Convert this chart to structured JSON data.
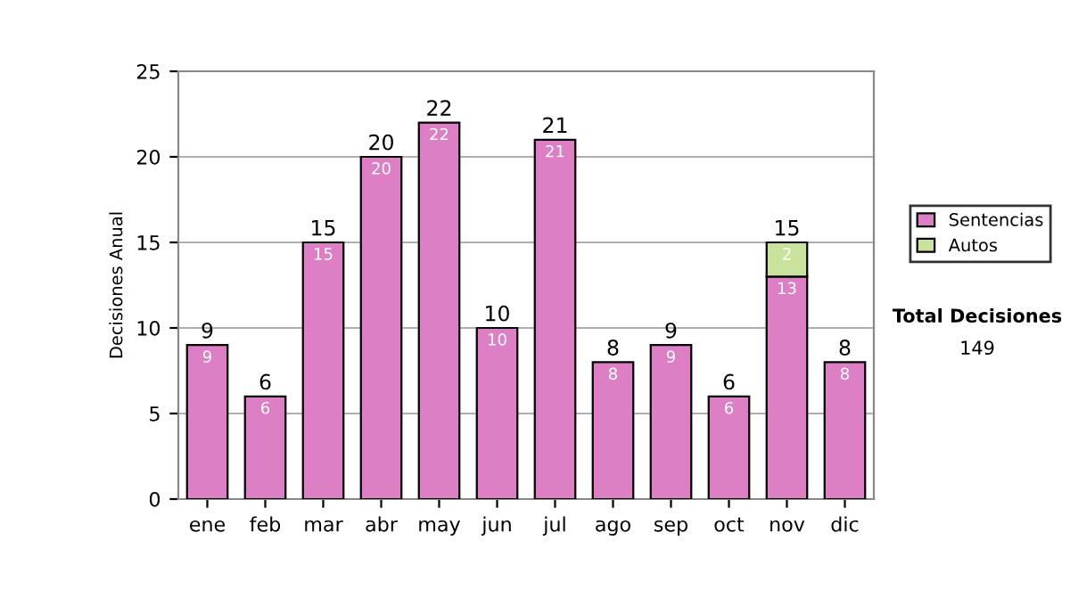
{
  "chart_data": {
    "type": "bar",
    "stacked": true,
    "ylabel": "Decisiones Anual",
    "categories": [
      "ene",
      "feb",
      "mar",
      "abr",
      "may",
      "jun",
      "jul",
      "ago",
      "sep",
      "oct",
      "nov",
      "dic"
    ],
    "series": [
      {
        "name": "Sentencias",
        "color": "#dd7fc4",
        "values": [
          9,
          6,
          15,
          20,
          22,
          10,
          21,
          8,
          9,
          6,
          13,
          8
        ]
      },
      {
        "name": "Autos",
        "color": "#c9e39d",
        "values": [
          null,
          null,
          null,
          null,
          null,
          null,
          null,
          null,
          null,
          null,
          2,
          null
        ],
        "value_labels": [
          null,
          null,
          null,
          null,
          null,
          null,
          null,
          null,
          null,
          null,
          "2",
          null
        ]
      }
    ],
    "data_labels": true,
    "totals": [
      "9",
      "6",
      "15",
      "20",
      "22",
      "10",
      "21",
      "8",
      "9",
      "6",
      "15",
      "8"
    ],
    "ylim": [
      0,
      25
    ],
    "yticks": [
      0,
      5,
      10,
      15,
      20,
      25
    ],
    "grid": "y",
    "legend": "right",
    "annotations": [
      "Total Decisiones",
      "149"
    ]
  }
}
